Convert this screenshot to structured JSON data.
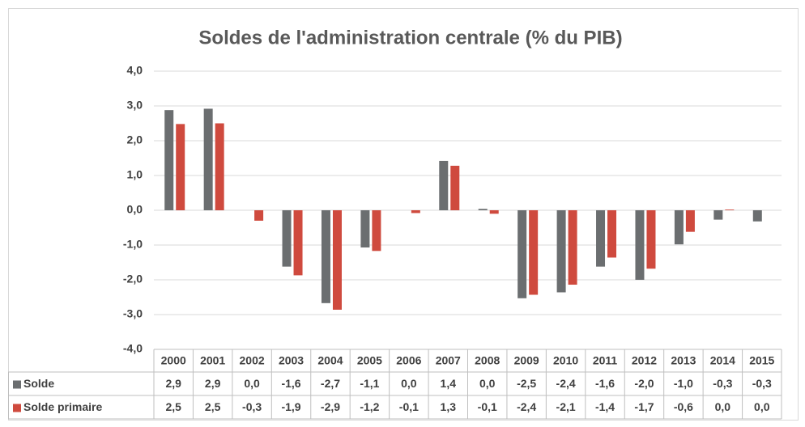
{
  "chart_data": {
    "type": "bar",
    "title": "Soldes de l'administration centrale (% du PIB)",
    "categories": [
      "2000",
      "2001",
      "2002",
      "2003",
      "2004",
      "2005",
      "2006",
      "2007",
      "2008",
      "2009",
      "2010",
      "2011",
      "2012",
      "2013",
      "2014",
      "2015"
    ],
    "series": [
      {
        "name": "Solde",
        "color": "#6b6e70",
        "values": [
          2.88,
          2.92,
          0.0,
          -1.62,
          -2.67,
          -1.07,
          0.0,
          1.42,
          0.04,
          -2.53,
          -2.36,
          -1.62,
          -2.0,
          -0.98,
          -0.27,
          -0.32
        ],
        "value_labels": [
          "2,9",
          "2,9",
          "0,0",
          "-1,6",
          "-2,7",
          "-1,1",
          "0,0",
          "1,4",
          "0,0",
          "-2,5",
          "-2,4",
          "-1,6",
          "-2,0",
          "-1,0",
          "-0,3",
          "-0,3"
        ]
      },
      {
        "name": "Solde primaire",
        "color": "#cf4a3e",
        "values": [
          2.48,
          2.5,
          -0.3,
          -1.87,
          -2.86,
          -1.17,
          -0.08,
          1.28,
          -0.1,
          -2.43,
          -2.14,
          -1.36,
          -1.68,
          -0.62,
          0.02,
          0.0
        ],
        "value_labels": [
          "2,5",
          "2,5",
          "-0,3",
          "-1,9",
          "-2,9",
          "-1,2",
          "-0,1",
          "1,3",
          "-0,1",
          "-2,4",
          "-2,1",
          "-1,4",
          "-1,7",
          "-0,6",
          "0,0",
          "0,0"
        ]
      }
    ],
    "ylim": [
      -4,
      4
    ],
    "yticks": [
      {
        "value": 4,
        "label": "4,0"
      },
      {
        "value": 3,
        "label": "3,0"
      },
      {
        "value": 2,
        "label": "2,0"
      },
      {
        "value": 1,
        "label": "1,0"
      },
      {
        "value": 0,
        "label": "0,0"
      },
      {
        "value": -1,
        "label": "-1,0"
      },
      {
        "value": -2,
        "label": "-2,0"
      },
      {
        "value": -3,
        "label": "-3,0"
      },
      {
        "value": -4,
        "label": "-4,0"
      }
    ],
    "grid": true
  }
}
